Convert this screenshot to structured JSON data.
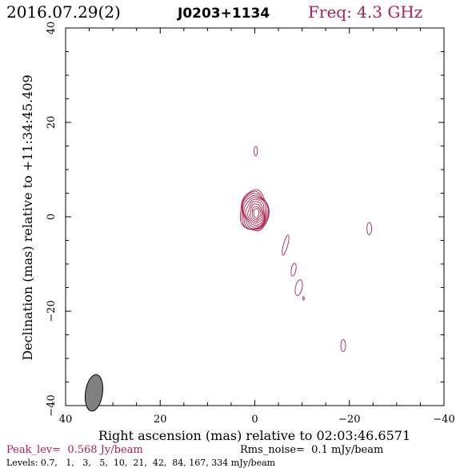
{
  "header": {
    "date": "2016.07.29(2)",
    "source": "J0203+1134",
    "freq": "Freq: 4.3 GHz"
  },
  "footer": {
    "peak": "Peak_lev=  0.568 Jy/beam",
    "rms": "Rms_noise=  0.1 mJy/beam",
    "levels": "Levels: 0.7,   1,   3,   5,  10,  21,  42,  84, 167, 334 mJy/beam"
  },
  "colors": {
    "contour": "#b0204a",
    "freq": "#b0204a",
    "peak": "#b0204a",
    "axes": "#000000",
    "beam_fill": "#808080"
  },
  "chart_data": {
    "type": "contour",
    "xlabel": "Right ascension (mas) relative to 02:03:46.6571",
    "ylabel": "Declination (mas) relative to +11:34:45.409",
    "xlim": [
      40,
      -40
    ],
    "ylim": [
      -40,
      40
    ],
    "xticks": [
      {
        "value": 40,
        "label": "40"
      },
      {
        "value": 20,
        "label": "20"
      },
      {
        "value": 0,
        "label": "0"
      },
      {
        "value": -20,
        "label": "−20"
      },
      {
        "value": -40,
        "label": "−40"
      }
    ],
    "yticks": [
      {
        "value": -40,
        "label": "−40"
      },
      {
        "value": -20,
        "label": "−20"
      },
      {
        "value": 0,
        "label": "0"
      },
      {
        "value": 20,
        "label": "20"
      },
      {
        "value": 40,
        "label": "40"
      }
    ],
    "levels_mJy": [
      0.7,
      1,
      3,
      5,
      10,
      21,
      42,
      84,
      167,
      334
    ],
    "core": {
      "x": -0.3,
      "y": 0.8
    },
    "core_contours": [
      {
        "rx": 3.0,
        "ry": 4.3,
        "dx": 0.4,
        "dy": 0.4
      },
      {
        "rx": 2.85,
        "ry": 4.05,
        "dx": 0.35,
        "dy": 0.35
      },
      {
        "rx": 2.7,
        "ry": 3.8,
        "dx": 0.3,
        "dy": 0.3
      },
      {
        "rx": 2.5,
        "ry": 3.5,
        "dx": 0.25,
        "dy": 0.25
      },
      {
        "rx": 2.25,
        "ry": 3.15,
        "dx": 0.2,
        "dy": 0.2
      },
      {
        "rx": 1.95,
        "ry": 2.75,
        "dx": 0.15,
        "dy": 0.15
      },
      {
        "rx": 1.6,
        "ry": 2.3,
        "dx": 0.1,
        "dy": 0.1
      },
      {
        "rx": 1.25,
        "ry": 1.85,
        "dx": 0.05,
        "dy": 0.05
      },
      {
        "rx": 0.9,
        "ry": 1.4,
        "dx": 0.0,
        "dy": 0.0
      },
      {
        "rx": 0.55,
        "ry": 1.0,
        "dx": 0.0,
        "dy": 0.0
      }
    ],
    "components": [
      {
        "x": -0.2,
        "y": 13.9,
        "rx": 0.35,
        "ry": 1.0,
        "rot": 0
      },
      {
        "x": -6.5,
        "y": -6.0,
        "rx": 0.45,
        "ry": 2.2,
        "rot": 15
      },
      {
        "x": -8.2,
        "y": -11.2,
        "rx": 0.5,
        "ry": 1.4,
        "rot": 10
      },
      {
        "x": -9.3,
        "y": -15.0,
        "rx": 0.7,
        "ry": 1.7,
        "rot": 12
      },
      {
        "x": -10.3,
        "y": -17.3,
        "rx": 0.15,
        "ry": 0.35,
        "rot": 0
      },
      {
        "x": -24.2,
        "y": -2.5,
        "rx": 0.5,
        "ry": 1.3,
        "rot": 0
      },
      {
        "x": -18.7,
        "y": -27.3,
        "rx": 0.5,
        "ry": 1.3,
        "rot": 0
      }
    ],
    "beam": {
      "x": 34.0,
      "y": -37.3,
      "major": 3.9,
      "minor": 1.8,
      "pa": 8
    }
  }
}
